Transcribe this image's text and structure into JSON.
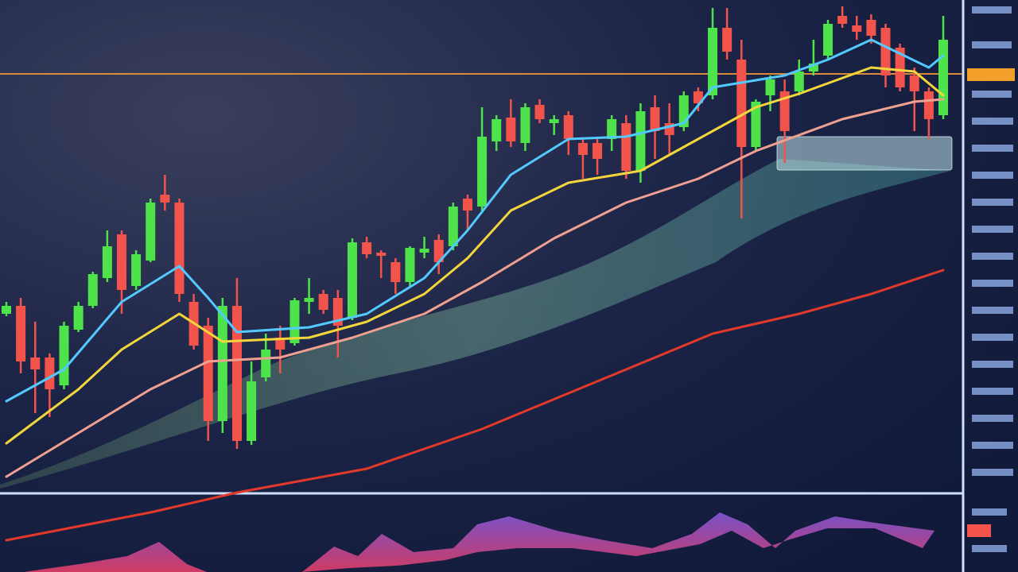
{
  "chart_data": {
    "type": "candlestick",
    "categories": [
      null,
      null,
      null,
      null,
      null,
      null,
      null,
      null,
      null,
      null,
      null,
      null,
      null,
      null,
      null,
      null,
      null,
      null,
      null,
      null,
      null,
      null,
      null,
      null,
      null,
      null,
      null,
      null,
      null,
      null,
      null,
      null,
      null,
      null,
      null,
      null,
      null,
      null,
      null,
      null,
      null,
      null,
      null,
      null,
      null,
      null,
      null,
      null,
      null,
      null,
      null,
      null,
      null,
      null,
      null,
      null,
      null,
      null,
      null,
      null,
      null,
      null,
      null,
      null,
      null,
      null
    ],
    "open": [
      220,
      230,
      165,
      165,
      130,
      200,
      230,
      265,
      320,
      255,
      287,
      370,
      360,
      235,
      205,
      85,
      230,
      60,
      140,
      190,
      183,
      235,
      245,
      240,
      215,
      310,
      297,
      285,
      260,
      297,
      313,
      305,
      365,
      355,
      437,
      467,
      435,
      483,
      460,
      470,
      435,
      435,
      440,
      460,
      400,
      480,
      460,
      455,
      500,
      495,
      580,
      540,
      430,
      495,
      500,
      500,
      525,
      545,
      595,
      583,
      590,
      580,
      555,
      520,
      500,
      470
    ],
    "high": [
      235,
      240,
      210,
      170,
      210,
      235,
      273,
      325,
      325,
      300,
      365,
      395,
      365,
      245,
      215,
      240,
      265,
      160,
      195,
      205,
      240,
      265,
      250,
      250,
      315,
      317,
      300,
      290,
      305,
      317,
      320,
      360,
      370,
      480,
      470,
      490,
      485,
      490,
      470,
      475,
      440,
      440,
      470,
      470,
      485,
      495,
      485,
      500,
      505,
      605,
      605,
      565,
      490,
      520,
      515,
      540,
      565,
      590,
      607,
      595,
      597,
      585,
      560,
      530,
      505,
      595
    ],
    "low": [
      217,
      145,
      95,
      90,
      125,
      197,
      227,
      260,
      220,
      250,
      285,
      350,
      235,
      175,
      60,
      70,
      50,
      55,
      135,
      145,
      180,
      220,
      220,
      165,
      212,
      290,
      265,
      245,
      255,
      290,
      270,
      300,
      325,
      350,
      425,
      430,
      425,
      460,
      445,
      420,
      390,
      395,
      425,
      390,
      385,
      415,
      420,
      450,
      475,
      490,
      540,
      340,
      425,
      475,
      410,
      495,
      520,
      540,
      580,
      565,
      560,
      505,
      500,
      450,
      440,
      465
    ],
    "close": [
      230,
      160,
      150,
      125,
      205,
      230,
      270,
      305,
      250,
      295,
      360,
      360,
      245,
      180,
      85,
      230,
      60,
      135,
      175,
      175,
      237,
      240,
      225,
      205,
      310,
      295,
      293,
      260,
      303,
      302,
      285,
      355,
      350,
      443,
      465,
      437,
      480,
      465,
      465,
      440,
      420,
      415,
      465,
      400,
      475,
      450,
      445,
      495,
      485,
      580,
      550,
      430,
      487,
      515,
      450,
      525,
      535,
      585,
      585,
      575,
      570,
      520,
      505,
      500,
      465,
      565
    ],
    "up_color": "#4fe34b",
    "down_color": "#f2544b",
    "ylim": [
      -105,
      615
    ],
    "reference_line": 522,
    "reference_color": "#d98a3a",
    "lines": [
      {
        "color": "#52c9ff",
        "x": [
          0,
          4,
          8,
          12,
          14,
          16,
          21,
          25,
          29,
          32,
          35,
          39,
          43,
          47,
          49,
          54,
          57,
          60,
          64,
          65
        ],
        "values": [
          110,
          150,
          235,
          280,
          240,
          197,
          203,
          220,
          265,
          325,
          395,
          440,
          443,
          460,
          505,
          520,
          540,
          565,
          530,
          545
        ]
      },
      {
        "color": "#f3d63c",
        "x": [
          0,
          5,
          8,
          12,
          15,
          21,
          25,
          29,
          32,
          35,
          39,
          44,
          48,
          52,
          55,
          60,
          63,
          65
        ],
        "values": [
          57,
          125,
          175,
          220,
          185,
          190,
          210,
          245,
          290,
          350,
          385,
          400,
          440,
          480,
          497,
          530,
          525,
          495
        ]
      },
      {
        "color": "#f0a090",
        "x": [
          0,
          5,
          10,
          14,
          19,
          24,
          29,
          33,
          38,
          43,
          48,
          52,
          58,
          63,
          65
        ],
        "values": [
          15,
          70,
          125,
          160,
          165,
          190,
          220,
          260,
          315,
          360,
          390,
          425,
          465,
          487,
          490
        ]
      },
      {
        "color": "#e2392a",
        "x": [
          0,
          10,
          16,
          25,
          33,
          41,
          49,
          55,
          60,
          65
        ],
        "values": [
          -65,
          -30,
          -5,
          25,
          75,
          135,
          195,
          220,
          245,
          275
        ]
      }
    ]
  }
}
